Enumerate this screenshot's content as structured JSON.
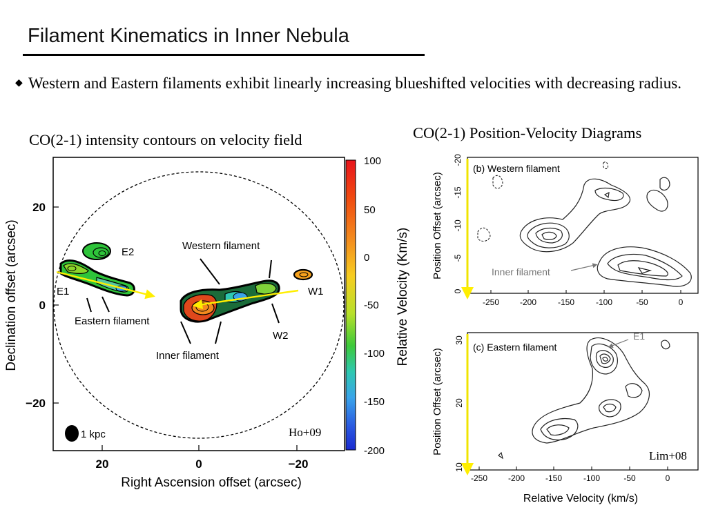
{
  "slide": {
    "title": "Filament Kinematics in Inner Nebula",
    "bullet": "Western and Eastern filaments exhibit linearly increasing blueshifted velocities with decreasing radius."
  },
  "left_figure": {
    "caption": "CO(2-1) intensity contours on velocity field",
    "x_label": "Right Ascension offset (arcsec)",
    "y_label": "Declination offset (arcsec)",
    "x_ticks": [
      "20",
      "0",
      "−20"
    ],
    "y_ticks": [
      "20",
      "0",
      "−20"
    ],
    "labels": {
      "E1": "E1",
      "E2": "E2",
      "W1": "W1",
      "W2": "W2",
      "western": "Western filament",
      "eastern": "Eastern filament",
      "inner": "Inner filament",
      "scale": "1 kpc",
      "credit": "Ho+09"
    },
    "colorbar": {
      "label": "Relative Velocity (Km/s)",
      "ticks": [
        "100",
        "50",
        "0",
        "-50",
        "-100",
        "-150",
        "-200"
      ]
    }
  },
  "right_figure": {
    "caption": "CO(2-1) Position-Velocity Diagrams",
    "top_panel": {
      "title": "(b) Western filament",
      "y_label": "Position Offset (arcsec)",
      "y_ticks": [
        "-20",
        "-15",
        "-10",
        "-5",
        "0"
      ],
      "x_ticks": [
        "-250",
        "-200",
        "-150",
        "-100",
        "-50",
        "0"
      ],
      "annotation": "Inner filament"
    },
    "bottom_panel": {
      "title": "(c) Eastern filament",
      "y_label": "Position Offset (arcsec)",
      "y_ticks": [
        "30",
        "20",
        "10"
      ],
      "x_ticks": [
        "-250",
        "-200",
        "-150",
        "-100",
        "-50",
        "0"
      ],
      "annotation": "E1",
      "x_label": "Relative Velocity (km/s)",
      "credit": "Lim+08"
    }
  }
}
